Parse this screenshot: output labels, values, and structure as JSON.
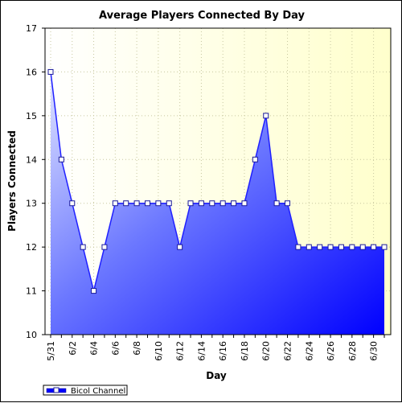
{
  "chart_data": {
    "type": "area",
    "title": "Average Players Connected By Day",
    "xlabel": "Day",
    "ylabel": "Players Connected",
    "ylim": [
      10,
      17
    ],
    "yticks": [
      10,
      11,
      12,
      13,
      14,
      15,
      16,
      17
    ],
    "grid": true,
    "legend_position": "bottom-left",
    "x": [
      "5/31",
      "6/1",
      "6/2",
      "6/3",
      "6/4",
      "6/5",
      "6/6",
      "6/7",
      "6/8",
      "6/9",
      "6/10",
      "6/11",
      "6/12",
      "6/13",
      "6/14",
      "6/15",
      "6/16",
      "6/17",
      "6/18",
      "6/19",
      "6/20",
      "6/21",
      "6/22",
      "6/23",
      "6/24",
      "6/25",
      "6/26",
      "6/27",
      "6/28",
      "6/29",
      "6/30",
      "7/1"
    ],
    "xtick_labels": [
      "5/31",
      "6/2",
      "6/4",
      "6/6",
      "6/8",
      "6/10",
      "6/12",
      "6/14",
      "6/16",
      "6/18",
      "6/20",
      "6/22",
      "6/24",
      "6/26",
      "6/28",
      "6/30"
    ],
    "series": [
      {
        "name": "Bicol Channel",
        "values": [
          16,
          14,
          13,
          12,
          11,
          12,
          13,
          13,
          13,
          13,
          13,
          13,
          12,
          13,
          13,
          13,
          13,
          13,
          13,
          14,
          15,
          13,
          13,
          12,
          12,
          12,
          12,
          12,
          12,
          12,
          12,
          12
        ],
        "color": "#0000ff"
      }
    ],
    "colors": {
      "plot_bg_top_right": "#ffffcc",
      "plot_bg_left": "#ffffff",
      "grid": "#c8c8a0",
      "fill_top_left": "#d8dcff",
      "fill_bottom_right": "#0000ff",
      "line": "#2020ff",
      "marker_fill": "#ffffff",
      "marker_stroke": "#1a1a9a"
    }
  }
}
